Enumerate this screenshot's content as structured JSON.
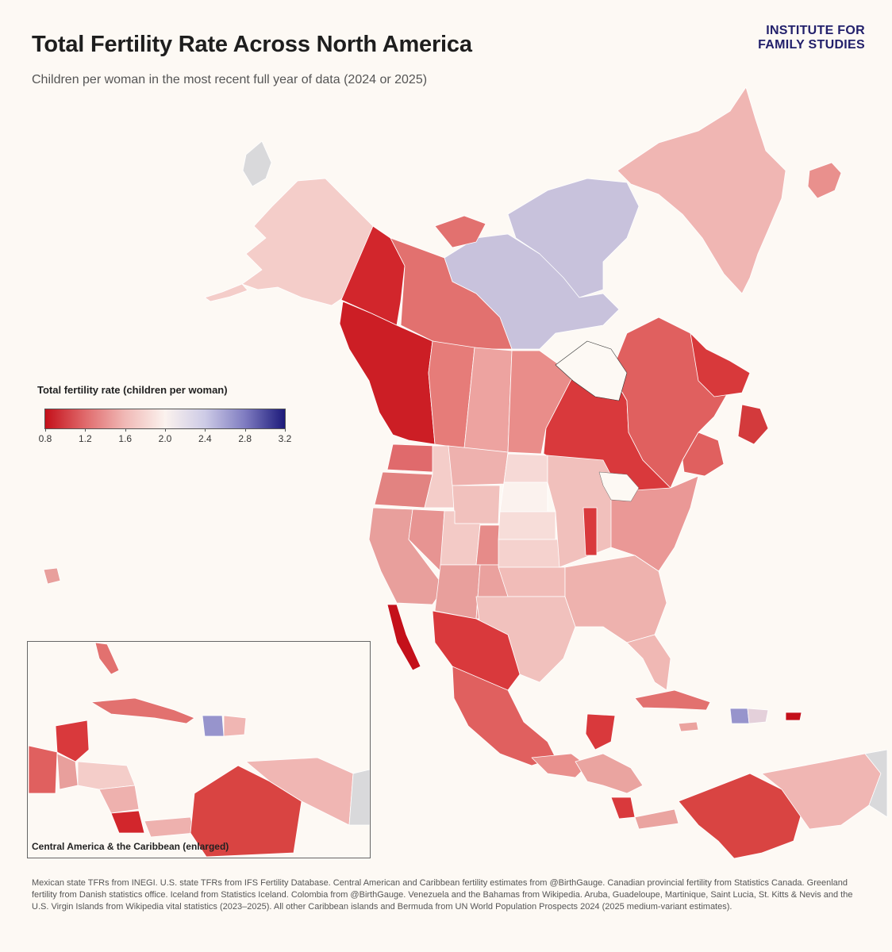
{
  "title": "Total Fertility Rate Across North America",
  "subtitle": "Children per woman in the most recent full year of data (2024 or 2025)",
  "logo": {
    "line1": "INSTITUTE FOR",
    "line2": "FAMILY STUDIES"
  },
  "legend": {
    "title": "Total fertility rate (children per woman)",
    "min": 0.8,
    "max": 3.2,
    "ticks": [
      "0.8",
      "1.2",
      "1.6",
      "2.0",
      "2.4",
      "2.8",
      "3.2"
    ],
    "colors": [
      "#c4101a",
      "#e06a6c",
      "#f0b9b6",
      "#fbf2ee",
      "#cdcbe6",
      "#7f7cc1",
      "#1c1a7a"
    ]
  },
  "inset": {
    "label": "Central America & the Caribbean (enlarged)"
  },
  "no_data_color": "#d9d9db",
  "footnote": "Mexican state TFRs from INEGI. U.S. state TFRs from IFS Fertility Database. Central American and Caribbean fertility estimates from @BirthGauge. Canadian provincial fertility from Statistics Canada. Greenland fertility from Danish statistics office. Iceland from Statistics Iceland. Colombia from @BirthGauge. Venezuela and the Bahamas from Wikipedia. Aruba, Guadeloupe, Martinique, Saint Lucia, St. Kitts & Nevis and the U.S. Virgin Islands from Wikipedia vital statistics (2023–2025). All other Caribbean islands and Bermuda from UN World Population Prospects 2024 (2025 medium-variant estimates)."
}
